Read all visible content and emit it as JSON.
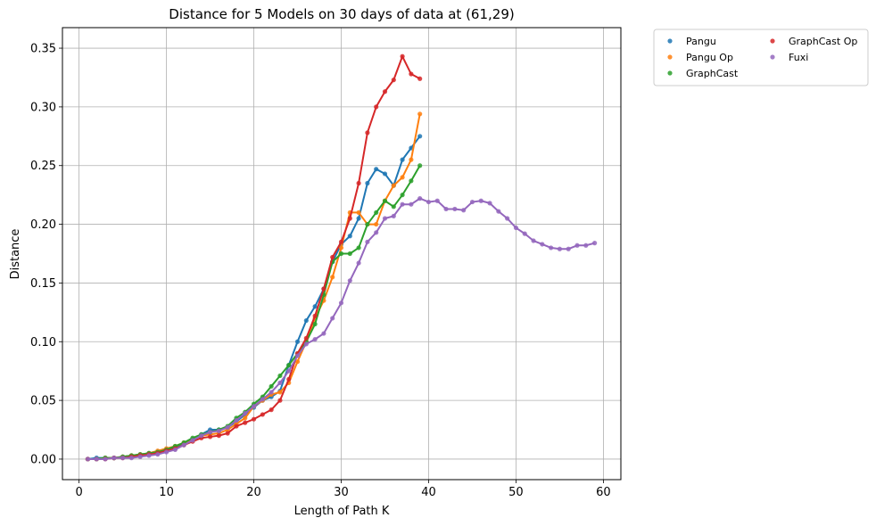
{
  "chart_data": {
    "type": "line",
    "title": "Distance for 5 Models on 30 days of data at (61,29)",
    "xlabel": "Length of Path K",
    "ylabel": "Distance",
    "xlim": [
      -1.9,
      62
    ],
    "ylim": [
      -0.0175,
      0.3675
    ],
    "xticks": [
      0,
      10,
      20,
      30,
      40,
      50,
      60
    ],
    "yticks": [
      0.0,
      0.05,
      0.1,
      0.15,
      0.2,
      0.25,
      0.3,
      0.35
    ],
    "ytick_labels": [
      "0.00",
      "0.05",
      "0.10",
      "0.15",
      "0.20",
      "0.25",
      "0.30",
      "0.35"
    ],
    "grid": true,
    "legend_position": "outside-upper-right",
    "series": [
      {
        "name": "Pangu",
        "color": "#1f77b4",
        "x": [
          1,
          2,
          3,
          4,
          5,
          6,
          7,
          8,
          9,
          10,
          11,
          12,
          13,
          14,
          15,
          16,
          17,
          18,
          19,
          20,
          21,
          22,
          23,
          24,
          25,
          26,
          27,
          28,
          29,
          30,
          31,
          32,
          33,
          34,
          35,
          36,
          37,
          38,
          39
        ],
        "y": [
          0.0,
          0.001,
          0.001,
          0.001,
          0.002,
          0.003,
          0.004,
          0.005,
          0.006,
          0.008,
          0.01,
          0.013,
          0.017,
          0.021,
          0.025,
          0.025,
          0.027,
          0.032,
          0.038,
          0.044,
          0.05,
          0.053,
          0.058,
          0.08,
          0.1,
          0.118,
          0.13,
          0.145,
          0.168,
          0.183,
          0.19,
          0.205,
          0.235,
          0.247,
          0.243,
          0.233,
          0.255,
          0.265,
          0.275
        ]
      },
      {
        "name": "Pangu Op",
        "color": "#ff7f0e",
        "x": [
          1,
          2,
          3,
          4,
          5,
          6,
          7,
          8,
          9,
          10,
          11,
          12,
          13,
          14,
          15,
          16,
          17,
          18,
          19,
          20,
          21,
          22,
          23,
          24,
          25,
          26,
          27,
          28,
          29,
          30,
          31,
          32,
          33,
          34,
          35,
          36,
          37,
          38,
          39
        ],
        "y": [
          0.0,
          0.0,
          0.001,
          0.001,
          0.002,
          0.003,
          0.004,
          0.005,
          0.007,
          0.009,
          0.011,
          0.014,
          0.017,
          0.02,
          0.021,
          0.022,
          0.025,
          0.03,
          0.035,
          0.045,
          0.05,
          0.055,
          0.057,
          0.065,
          0.083,
          0.1,
          0.12,
          0.135,
          0.155,
          0.18,
          0.21,
          0.21,
          0.2,
          0.2,
          0.22,
          0.233,
          0.24,
          0.255,
          0.294
        ]
      },
      {
        "name": "GraphCast",
        "color": "#2ca02c",
        "x": [
          1,
          2,
          3,
          4,
          5,
          6,
          7,
          8,
          9,
          10,
          11,
          12,
          13,
          14,
          15,
          16,
          17,
          18,
          19,
          20,
          21,
          22,
          23,
          24,
          25,
          26,
          27,
          28,
          29,
          30,
          31,
          32,
          33,
          34,
          35,
          36,
          37,
          38,
          39
        ],
        "y": [
          0.0,
          0.0,
          0.001,
          0.001,
          0.002,
          0.003,
          0.004,
          0.005,
          0.006,
          0.008,
          0.011,
          0.014,
          0.018,
          0.021,
          0.023,
          0.025,
          0.028,
          0.035,
          0.04,
          0.047,
          0.053,
          0.062,
          0.071,
          0.08,
          0.09,
          0.1,
          0.115,
          0.14,
          0.168,
          0.175,
          0.175,
          0.18,
          0.2,
          0.21,
          0.22,
          0.215,
          0.225,
          0.237,
          0.25
        ]
      },
      {
        "name": "GraphCast Op",
        "color": "#d62728",
        "x": [
          1,
          2,
          3,
          4,
          5,
          6,
          7,
          8,
          9,
          10,
          11,
          12,
          13,
          14,
          15,
          16,
          17,
          18,
          19,
          20,
          21,
          22,
          23,
          24,
          25,
          26,
          27,
          28,
          29,
          30,
          31,
          32,
          33,
          34,
          35,
          36,
          37,
          38,
          39
        ],
        "y": [
          0.0,
          0.0,
          0.0,
          0.001,
          0.001,
          0.002,
          0.003,
          0.004,
          0.005,
          0.007,
          0.009,
          0.012,
          0.015,
          0.018,
          0.019,
          0.02,
          0.022,
          0.028,
          0.031,
          0.034,
          0.038,
          0.042,
          0.05,
          0.068,
          0.09,
          0.103,
          0.122,
          0.145,
          0.172,
          0.185,
          0.205,
          0.235,
          0.278,
          0.3,
          0.313,
          0.323,
          0.343,
          0.328,
          0.324
        ]
      },
      {
        "name": "Fuxi",
        "color": "#9467bd",
        "x": [
          1,
          2,
          3,
          4,
          5,
          6,
          7,
          8,
          9,
          10,
          11,
          12,
          13,
          14,
          15,
          16,
          17,
          18,
          19,
          20,
          21,
          22,
          23,
          24,
          25,
          26,
          27,
          28,
          29,
          30,
          31,
          32,
          33,
          34,
          35,
          36,
          37,
          38,
          39,
          40,
          41,
          42,
          43,
          44,
          45,
          46,
          47,
          48,
          49,
          50,
          51,
          52,
          53,
          54,
          55,
          56,
          57,
          58,
          59
        ],
        "y": [
          0.0,
          0.0,
          0.0,
          0.001,
          0.001,
          0.001,
          0.002,
          0.003,
          0.004,
          0.006,
          0.008,
          0.012,
          0.016,
          0.02,
          0.023,
          0.024,
          0.027,
          0.033,
          0.039,
          0.045,
          0.051,
          0.057,
          0.065,
          0.075,
          0.088,
          0.098,
          0.102,
          0.107,
          0.12,
          0.133,
          0.152,
          0.167,
          0.185,
          0.193,
          0.205,
          0.207,
          0.217,
          0.217,
          0.222,
          0.219,
          0.22,
          0.213,
          0.213,
          0.212,
          0.219,
          0.22,
          0.218,
          0.211,
          0.205,
          0.197,
          0.192,
          0.186,
          0.183,
          0.18,
          0.179,
          0.179,
          0.182,
          0.182,
          0.184
        ]
      }
    ]
  }
}
